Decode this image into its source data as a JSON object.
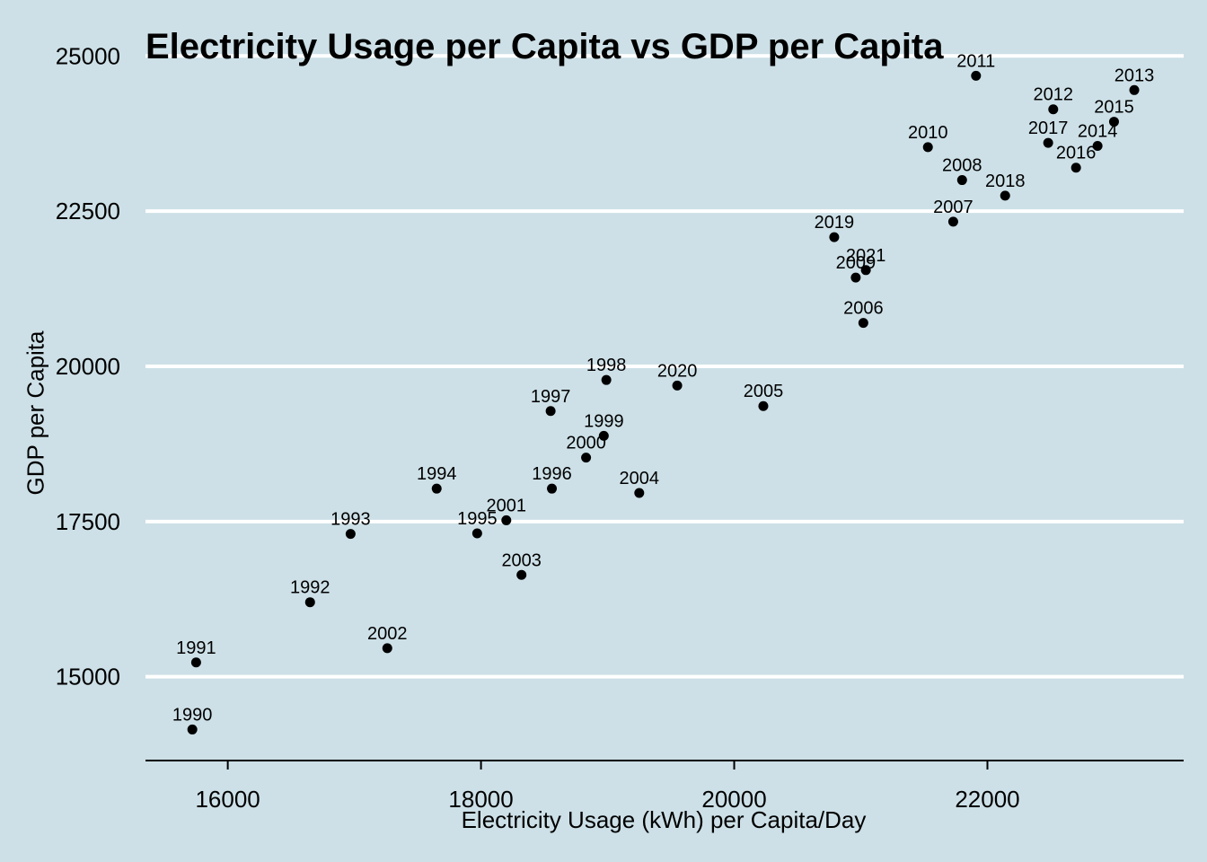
{
  "chart_data": {
    "type": "scatter",
    "title": "Electricity Usage per Capita vs GDP per Capita",
    "xlabel": "Electricity Usage (kWh) per Capita/Day",
    "ylabel": "GDP per Capita",
    "xlim": [
      15350,
      23550
    ],
    "ylim": [
      13650,
      25250
    ],
    "xticks": [
      16000,
      18000,
      20000,
      22000
    ],
    "yticks": [
      15000,
      17500,
      20000,
      22500,
      25000
    ],
    "grid": "horizontal-major",
    "legend": "none",
    "points": [
      {
        "label": "1990",
        "x": 15720,
        "y": 14150
      },
      {
        "label": "1991",
        "x": 15750,
        "y": 15230
      },
      {
        "label": "1992",
        "x": 16650,
        "y": 16200
      },
      {
        "label": "1993",
        "x": 16970,
        "y": 17300
      },
      {
        "label": "1994",
        "x": 17650,
        "y": 18030
      },
      {
        "label": "1995",
        "x": 17970,
        "y": 17310
      },
      {
        "label": "1996",
        "x": 18560,
        "y": 18030
      },
      {
        "label": "1997",
        "x": 18550,
        "y": 19280
      },
      {
        "label": "1998",
        "x": 18990,
        "y": 19780
      },
      {
        "label": "1999",
        "x": 18970,
        "y": 18880
      },
      {
        "label": "2000",
        "x": 18830,
        "y": 18530
      },
      {
        "label": "2001",
        "x": 18200,
        "y": 17520
      },
      {
        "label": "2002",
        "x": 17260,
        "y": 15460
      },
      {
        "label": "2003",
        "x": 18320,
        "y": 16640
      },
      {
        "label": "2004",
        "x": 19250,
        "y": 17960
      },
      {
        "label": "2005",
        "x": 20230,
        "y": 19360
      },
      {
        "label": "2006",
        "x": 21020,
        "y": 20700
      },
      {
        "label": "2007",
        "x": 21730,
        "y": 22330
      },
      {
        "label": "2008",
        "x": 21800,
        "y": 23000
      },
      {
        "label": "2009",
        "x": 20960,
        "y": 21430
      },
      {
        "label": "2010",
        "x": 21530,
        "y": 23530
      },
      {
        "label": "2011",
        "x": 21910,
        "y": 24680
      },
      {
        "label": "2012",
        "x": 22520,
        "y": 24140
      },
      {
        "label": "2013",
        "x": 23160,
        "y": 24450
      },
      {
        "label": "2014",
        "x": 22870,
        "y": 23550
      },
      {
        "label": "2015",
        "x": 23000,
        "y": 23940
      },
      {
        "label": "2016",
        "x": 22700,
        "y": 23200
      },
      {
        "label": "2017",
        "x": 22480,
        "y": 23600
      },
      {
        "label": "2018",
        "x": 22140,
        "y": 22750
      },
      {
        "label": "2019",
        "x": 20790,
        "y": 22080
      },
      {
        "label": "2020",
        "x": 19550,
        "y": 19690
      },
      {
        "label": "2021",
        "x": 21040,
        "y": 21550
      }
    ]
  }
}
